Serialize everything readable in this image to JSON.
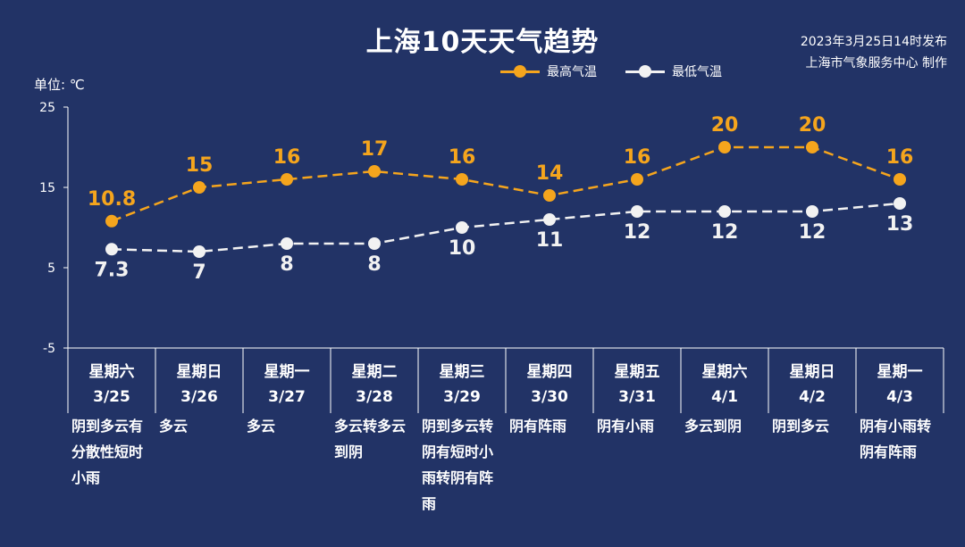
{
  "title": "上海10天天气趋势",
  "publish": {
    "line1": "2023年3月25日14时发布",
    "line2": "上海市气象服务中心 制作"
  },
  "unit_label": "单位: ℃",
  "colors": {
    "background": "#223366",
    "high": "#F5A51D",
    "low": "#F2F2F2",
    "axis": "#FFFFFF"
  },
  "chart_data": {
    "type": "line",
    "title": "上海10天天气趋势",
    "ylabel": "单位: ℃",
    "ylim": [
      -5,
      25
    ],
    "yticks": [
      -5,
      5,
      15,
      25
    ],
    "grid": false,
    "legend": "top-center",
    "days": [
      {
        "weekday": "星期六",
        "date": "3/25",
        "weather": "阴到多云有分散性短时小雨"
      },
      {
        "weekday": "星期日",
        "date": "3/26",
        "weather": "多云"
      },
      {
        "weekday": "星期一",
        "date": "3/27",
        "weather": "多云"
      },
      {
        "weekday": "星期二",
        "date": "3/28",
        "weather": "多云转多云到阴"
      },
      {
        "weekday": "星期三",
        "date": "3/29",
        "weather": "阴到多云转阴有短时小雨转阴有阵雨"
      },
      {
        "weekday": "星期四",
        "date": "3/30",
        "weather": "阴有阵雨"
      },
      {
        "weekday": "星期五",
        "date": "3/31",
        "weather": "阴有小雨"
      },
      {
        "weekday": "星期六",
        "date": "4/1",
        "weather": "多云到阴"
      },
      {
        "weekday": "星期日",
        "date": "4/2",
        "weather": "阴到多云"
      },
      {
        "weekday": "星期一",
        "date": "4/3",
        "weather": "阴有小雨转阴有阵雨"
      }
    ],
    "series": [
      {
        "name": "最高气温",
        "values": [
          10.8,
          15,
          16,
          17,
          16,
          14,
          16,
          20,
          20,
          16
        ]
      },
      {
        "name": "最低气温",
        "values": [
          7.3,
          7,
          8,
          8,
          10,
          11,
          12,
          12,
          12,
          13
        ]
      }
    ]
  }
}
